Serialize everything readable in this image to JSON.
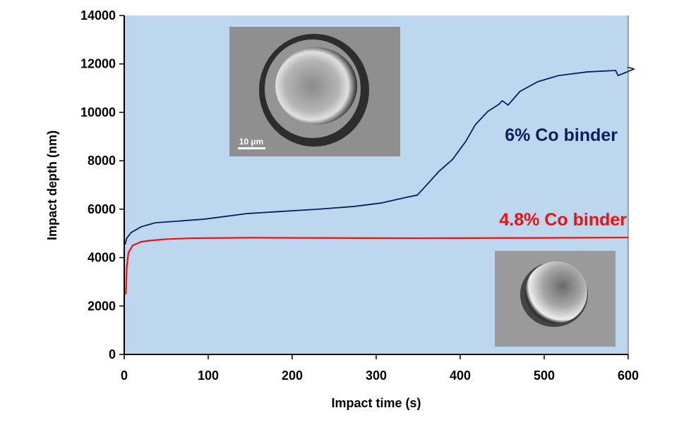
{
  "chart_data": {
    "type": "line",
    "title": "",
    "xlabel": "Impact time (s)",
    "ylabel": "Impact depth (nm)",
    "xlim": [
      0,
      600
    ],
    "ylim": [
      0,
      14000
    ],
    "xticks": [
      "0",
      "100",
      "200",
      "300",
      "400",
      "500",
      "600"
    ],
    "yticks": [
      "0",
      "2000",
      "4000",
      "6000",
      "8000",
      "10000",
      "12000",
      "14000"
    ],
    "grid": false,
    "background": "#bdd7ee",
    "series": [
      {
        "name": "6% Co binder",
        "color": "#0b1f5c",
        "x": [
          1,
          3,
          8,
          20,
          37,
          62,
          96,
          147,
          189,
          231,
          273,
          307,
          336,
          349,
          375,
          391,
          407,
          418,
          433,
          446,
          450,
          457,
          471,
          492,
          517,
          551,
          585,
          588,
          607,
          599
        ],
        "y": [
          4540,
          4800,
          5030,
          5270,
          5440,
          5500,
          5590,
          5820,
          5910,
          6000,
          6110,
          6260,
          6490,
          6580,
          7570,
          8060,
          8820,
          9490,
          10040,
          10330,
          10480,
          10300,
          10860,
          11260,
          11520,
          11670,
          11730,
          11520,
          11790,
          11870
        ]
      },
      {
        "name": "4.8% Co binder",
        "color": "#ee1111",
        "x": [
          0,
          2,
          3,
          5,
          10,
          20,
          30,
          50,
          80,
          150,
          250,
          350,
          450,
          550,
          600
        ],
        "y": [
          2500,
          2520,
          3600,
          4200,
          4500,
          4650,
          4700,
          4760,
          4800,
          4820,
          4810,
          4800,
          4810,
          4820,
          4830
        ]
      }
    ],
    "annotations": [
      "6% Co binder",
      "4.8% Co binder"
    ],
    "insets": [
      {
        "description_label": "10 µm"
      },
      {}
    ]
  }
}
